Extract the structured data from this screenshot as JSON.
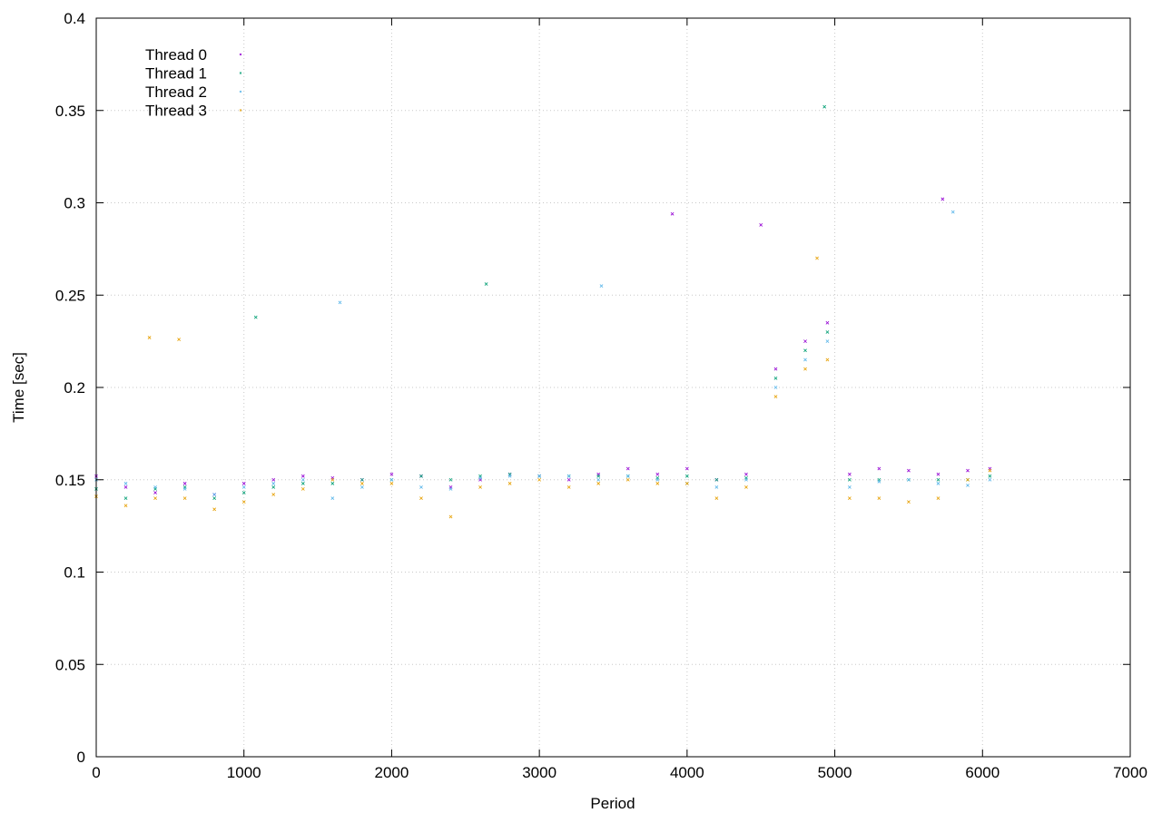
{
  "chart_data": {
    "type": "scatter",
    "title": "",
    "xlabel": "Period",
    "ylabel": "Time [sec]",
    "xlim": [
      0,
      7000
    ],
    "ylim": [
      0,
      0.4
    ],
    "x_ticks": [
      0,
      1000,
      2000,
      3000,
      4000,
      5000,
      6000,
      7000
    ],
    "y_ticks": [
      0,
      0.05,
      0.1,
      0.15,
      0.2,
      0.25,
      0.3,
      0.35,
      0.4
    ],
    "x_tick_labels": [
      "0",
      "1000",
      "2000",
      "3000",
      "4000",
      "5000",
      "6000",
      "7000"
    ],
    "y_tick_labels": [
      "0",
      "0.05",
      "0.1",
      "0.15",
      "0.2",
      "0.25",
      "0.3",
      "0.35",
      "0.4"
    ],
    "grid": true,
    "legend_position": "top-left",
    "series": [
      {
        "name": "Thread 0",
        "color": "#9400d3",
        "points": [
          [
            0,
            0.152
          ],
          [
            200,
            0.146
          ],
          [
            400,
            0.143
          ],
          [
            600,
            0.148
          ],
          [
            800,
            0.142
          ],
          [
            1000,
            0.148
          ],
          [
            1200,
            0.15
          ],
          [
            1400,
            0.152
          ],
          [
            1600,
            0.151
          ],
          [
            1800,
            0.15
          ],
          [
            2000,
            0.153
          ],
          [
            2200,
            0.152
          ],
          [
            2400,
            0.146
          ],
          [
            2600,
            0.15
          ],
          [
            2800,
            0.153
          ],
          [
            3000,
            0.152
          ],
          [
            3200,
            0.15
          ],
          [
            3400,
            0.153
          ],
          [
            3600,
            0.156
          ],
          [
            3800,
            0.153
          ],
          [
            4000,
            0.156
          ],
          [
            4200,
            0.15
          ],
          [
            4400,
            0.153
          ],
          [
            4600,
            0.21
          ],
          [
            4800,
            0.225
          ],
          [
            4950,
            0.235
          ],
          [
            5100,
            0.153
          ],
          [
            5300,
            0.156
          ],
          [
            5500,
            0.155
          ],
          [
            5700,
            0.153
          ],
          [
            5900,
            0.155
          ],
          [
            6050,
            0.156
          ],
          [
            3900,
            0.294
          ],
          [
            4500,
            0.288
          ],
          [
            5730,
            0.302
          ]
        ]
      },
      {
        "name": "Thread 1",
        "color": "#009e73",
        "points": [
          [
            0,
            0.145
          ],
          [
            200,
            0.14
          ],
          [
            400,
            0.145
          ],
          [
            600,
            0.146
          ],
          [
            800,
            0.14
          ],
          [
            1000,
            0.143
          ],
          [
            1200,
            0.146
          ],
          [
            1400,
            0.148
          ],
          [
            1600,
            0.148
          ],
          [
            1800,
            0.15
          ],
          [
            2000,
            0.15
          ],
          [
            2200,
            0.152
          ],
          [
            2400,
            0.15
          ],
          [
            2600,
            0.152
          ],
          [
            2800,
            0.153
          ],
          [
            3000,
            0.152
          ],
          [
            3200,
            0.152
          ],
          [
            3400,
            0.152
          ],
          [
            3600,
            0.152
          ],
          [
            3800,
            0.151
          ],
          [
            4000,
            0.152
          ],
          [
            4200,
            0.15
          ],
          [
            4400,
            0.151
          ],
          [
            4600,
            0.205
          ],
          [
            4800,
            0.22
          ],
          [
            4950,
            0.23
          ],
          [
            5100,
            0.15
          ],
          [
            5300,
            0.15
          ],
          [
            5500,
            0.15
          ],
          [
            5700,
            0.15
          ],
          [
            5900,
            0.15
          ],
          [
            6050,
            0.152
          ],
          [
            1080,
            0.238
          ],
          [
            2640,
            0.256
          ],
          [
            4930,
            0.352
          ]
        ]
      },
      {
        "name": "Thread 2",
        "color": "#56b4e9",
        "points": [
          [
            0,
            0.15
          ],
          [
            200,
            0.148
          ],
          [
            400,
            0.146
          ],
          [
            600,
            0.145
          ],
          [
            800,
            0.142
          ],
          [
            1000,
            0.146
          ],
          [
            1200,
            0.148
          ],
          [
            1400,
            0.15
          ],
          [
            1600,
            0.14
          ],
          [
            1800,
            0.146
          ],
          [
            2000,
            0.15
          ],
          [
            2200,
            0.146
          ],
          [
            2400,
            0.145
          ],
          [
            2600,
            0.151
          ],
          [
            2800,
            0.152
          ],
          [
            3000,
            0.152
          ],
          [
            3200,
            0.152
          ],
          [
            3400,
            0.15
          ],
          [
            3600,
            0.152
          ],
          [
            3800,
            0.15
          ],
          [
            4000,
            0.148
          ],
          [
            4200,
            0.146
          ],
          [
            4400,
            0.15
          ],
          [
            4600,
            0.2
          ],
          [
            4800,
            0.215
          ],
          [
            4950,
            0.225
          ],
          [
            5100,
            0.146
          ],
          [
            5300,
            0.149
          ],
          [
            5500,
            0.15
          ],
          [
            5700,
            0.148
          ],
          [
            5900,
            0.147
          ],
          [
            6050,
            0.15
          ],
          [
            1650,
            0.246
          ],
          [
            3420,
            0.255
          ],
          [
            5800,
            0.295
          ]
        ]
      },
      {
        "name": "Thread 3",
        "color": "#e69f00",
        "points": [
          [
            0,
            0.141
          ],
          [
            200,
            0.136
          ],
          [
            400,
            0.14
          ],
          [
            600,
            0.14
          ],
          [
            800,
            0.134
          ],
          [
            1000,
            0.138
          ],
          [
            1200,
            0.142
          ],
          [
            1400,
            0.145
          ],
          [
            1600,
            0.15
          ],
          [
            1800,
            0.148
          ],
          [
            2000,
            0.148
          ],
          [
            2200,
            0.14
          ],
          [
            2400,
            0.13
          ],
          [
            2600,
            0.146
          ],
          [
            2800,
            0.148
          ],
          [
            3000,
            0.15
          ],
          [
            3200,
            0.146
          ],
          [
            3400,
            0.148
          ],
          [
            3600,
            0.15
          ],
          [
            3800,
            0.148
          ],
          [
            4000,
            0.148
          ],
          [
            4200,
            0.14
          ],
          [
            4400,
            0.146
          ],
          [
            4600,
            0.195
          ],
          [
            4800,
            0.21
          ],
          [
            4950,
            0.215
          ],
          [
            5100,
            0.14
          ],
          [
            5300,
            0.14
          ],
          [
            5500,
            0.138
          ],
          [
            5700,
            0.14
          ],
          [
            5900,
            0.15
          ],
          [
            6050,
            0.155
          ],
          [
            360,
            0.227
          ],
          [
            560,
            0.226
          ],
          [
            4880,
            0.27
          ]
        ]
      }
    ]
  }
}
